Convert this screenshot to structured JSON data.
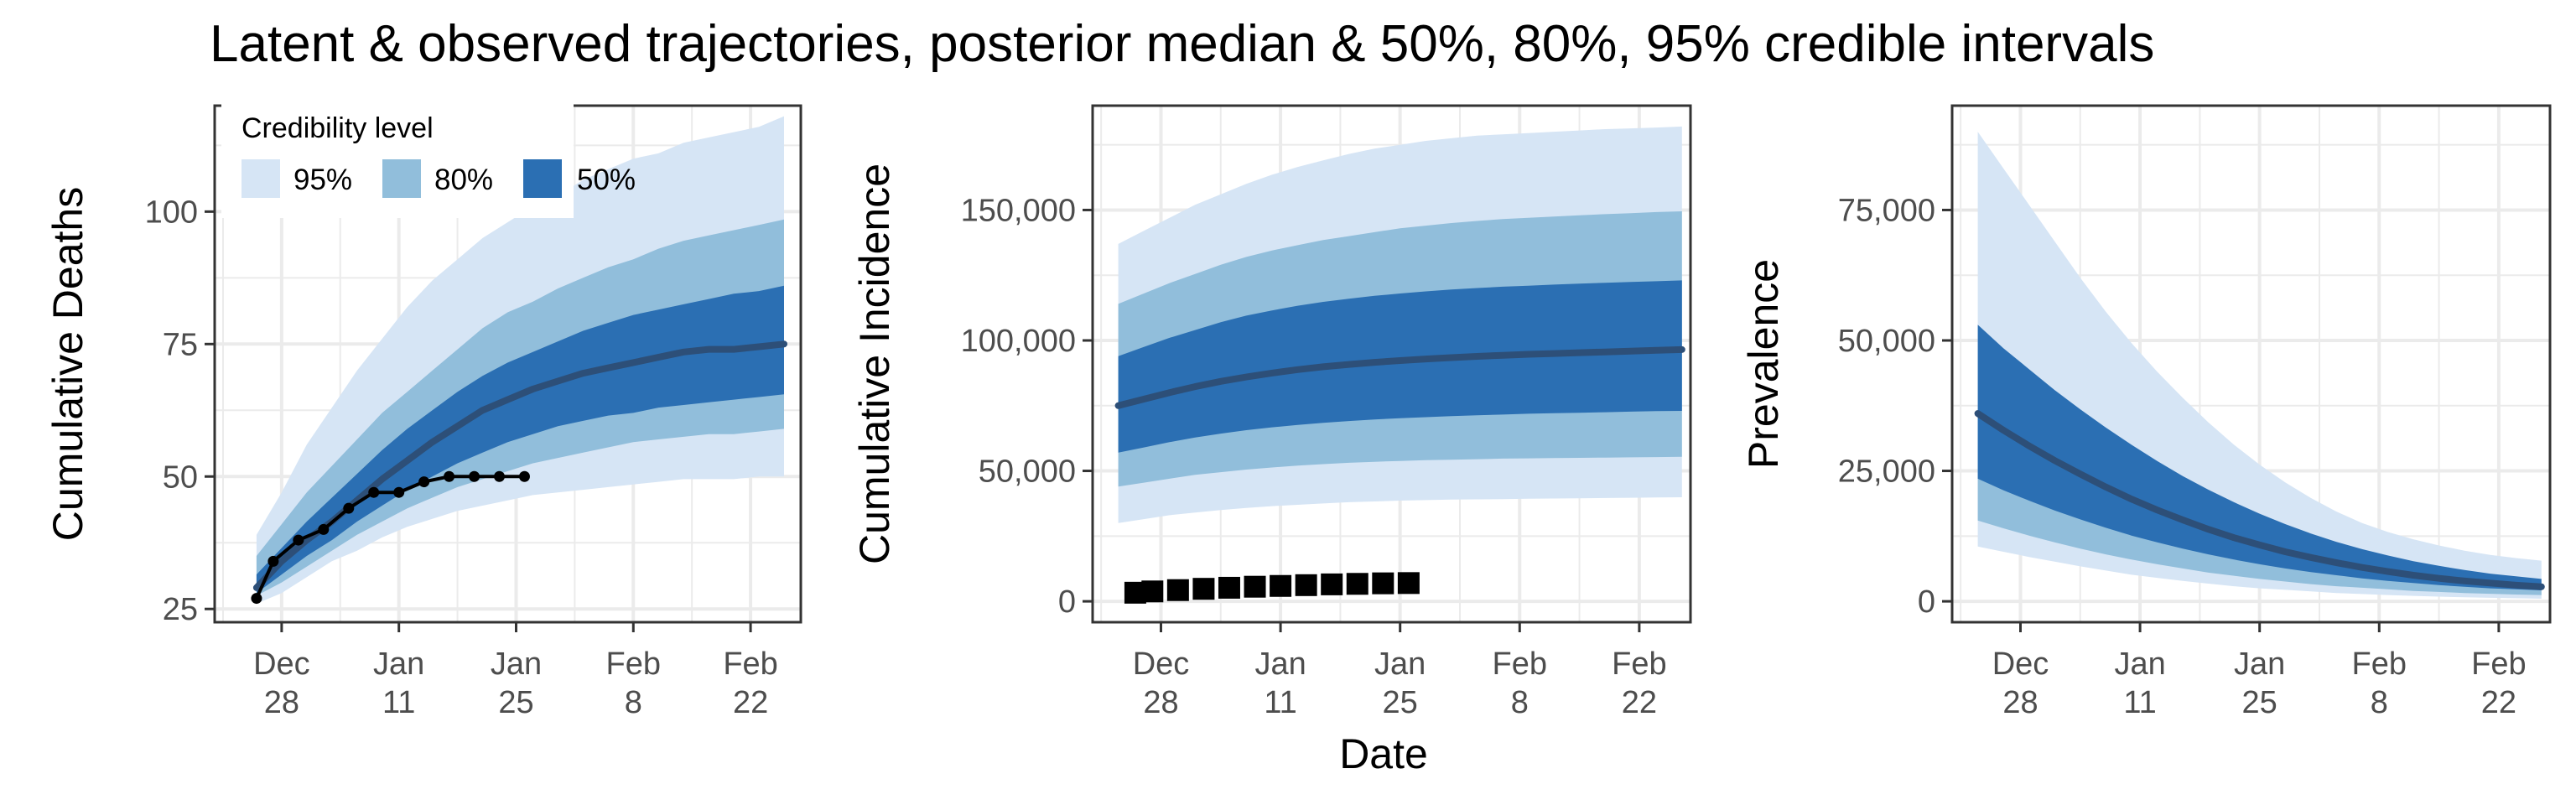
{
  "title": "Latent & observed trajectories, posterior median & 50%, 80%, 95% credible intervals",
  "xlabel": "Date",
  "legend": {
    "title": "Credibility level",
    "position": "top-left",
    "items": [
      {
        "label": "95%",
        "color": "#d6e5f5"
      },
      {
        "label": "80%",
        "color": "#91bedb"
      },
      {
        "label": "50%",
        "color": "#2b6fb3"
      }
    ]
  },
  "colors": {
    "median": "#2d4f78",
    "observed": "#000000",
    "panel_border": "#333333",
    "grid": "#ebebeb"
  },
  "chart_data": [
    {
      "type": "area",
      "ylabel": "Cumulative Deaths",
      "xlim": [
        "2020-12-20",
        "2021-02-28"
      ],
      "ylim": [
        22.5,
        120
      ],
      "y_ticks": [
        25,
        50,
        75,
        100
      ],
      "y_tick_labels": [
        "25",
        "50",
        "75",
        "100"
      ],
      "x_ticks": [
        "2020-12-28",
        "2021-01-11",
        "2021-01-25",
        "2021-02-08",
        "2021-02-22"
      ],
      "x_tick_labels": [
        [
          "Dec",
          "28"
        ],
        [
          "Jan",
          "11"
        ],
        [
          "Jan",
          "25"
        ],
        [
          "Feb",
          "8"
        ],
        [
          "Feb",
          "22"
        ]
      ],
      "grid": true,
      "x": [
        "2020-12-25",
        "2020-12-28",
        "2020-12-31",
        "2021-01-03",
        "2021-01-06",
        "2021-01-09",
        "2021-01-12",
        "2021-01-15",
        "2021-01-18",
        "2021-01-21",
        "2021-01-24",
        "2021-01-27",
        "2021-01-30",
        "2021-02-02",
        "2021-02-05",
        "2021-02-08",
        "2021-02-11",
        "2021-02-14",
        "2021-02-17",
        "2021-02-20",
        "2021-02-23",
        "2021-02-26"
      ],
      "bands": {
        "95": {
          "lower": [
            26,
            28,
            31,
            34,
            36,
            38.5,
            40.5,
            42,
            43.5,
            44.5,
            45.5,
            46.5,
            47,
            47.5,
            48,
            48.5,
            49,
            49.5,
            49.5,
            49.5,
            50,
            50
          ],
          "upper": [
            39,
            47,
            56,
            63,
            70,
            76,
            82,
            87,
            91,
            95,
            98,
            101,
            103,
            106,
            108,
            110,
            111,
            113,
            114,
            115,
            116,
            118
          ]
        },
        "80": {
          "lower": [
            27.5,
            30,
            33,
            36,
            39,
            41.5,
            44,
            46,
            48,
            49.5,
            51,
            52.5,
            53.5,
            54.5,
            55.5,
            56.5,
            57,
            57.5,
            58,
            58,
            58.5,
            59
          ],
          "upper": [
            35,
            41,
            47,
            52,
            57,
            62,
            66,
            70,
            74,
            78,
            81,
            83,
            85.5,
            87.5,
            89.5,
            91,
            93,
            94.5,
            95.5,
            96.5,
            97.5,
            98.5
          ]
        },
        "50": {
          "lower": [
            28,
            31.5,
            35,
            38,
            41.5,
            44.5,
            47.5,
            50,
            52.5,
            54.5,
            56.5,
            58,
            59.5,
            60.5,
            61.5,
            62,
            63,
            63.5,
            64,
            64.5,
            65,
            65.5
          ],
          "upper": [
            31.5,
            36.5,
            41.5,
            46,
            50.5,
            55,
            59,
            62.5,
            66,
            69,
            71.5,
            73.5,
            75.5,
            77.5,
            79,
            80.5,
            81.5,
            82.5,
            83.5,
            84.5,
            85,
            86
          ]
        }
      },
      "median": [
        29,
        34,
        38,
        41.5,
        45.5,
        49.5,
        53,
        56.5,
        59.5,
        62.5,
        64.5,
        66.5,
        68,
        69.5,
        70.5,
        71.5,
        72.5,
        73.5,
        74,
        74,
        74.5,
        75
      ],
      "observed": {
        "style": "line+points",
        "x": [
          "2020-12-25",
          "2020-12-27",
          "2020-12-30",
          "2021-01-02",
          "2021-01-05",
          "2021-01-08",
          "2021-01-11",
          "2021-01-14",
          "2021-01-17",
          "2021-01-20",
          "2021-01-23",
          "2021-01-26"
        ],
        "y": [
          27,
          34,
          38,
          40,
          44,
          47,
          47,
          49,
          50,
          50,
          50,
          50
        ]
      }
    },
    {
      "type": "area",
      "ylabel": "Cumulative Incidence",
      "xlim": [
        "2020-12-20",
        "2021-02-28"
      ],
      "ylim": [
        -8000,
        190000
      ],
      "y_ticks": [
        0,
        50000,
        100000,
        150000
      ],
      "y_tick_labels": [
        "0",
        "50,000",
        "100,000",
        "150,000"
      ],
      "x_ticks": [
        "2020-12-28",
        "2021-01-11",
        "2021-01-25",
        "2021-02-08",
        "2021-02-22"
      ],
      "x_tick_labels": [
        [
          "Dec",
          "28"
        ],
        [
          "Jan",
          "11"
        ],
        [
          "Jan",
          "25"
        ],
        [
          "Feb",
          "8"
        ],
        [
          "Feb",
          "22"
        ]
      ],
      "grid": true,
      "x": [
        "2020-12-23",
        "2020-12-26",
        "2020-12-29",
        "2021-01-01",
        "2021-01-04",
        "2021-01-07",
        "2021-01-10",
        "2021-01-13",
        "2021-01-16",
        "2021-01-19",
        "2021-01-22",
        "2021-01-25",
        "2021-01-28",
        "2021-01-31",
        "2021-02-03",
        "2021-02-06",
        "2021-02-09",
        "2021-02-12",
        "2021-02-15",
        "2021-02-18",
        "2021-02-21",
        "2021-02-24",
        "2021-02-27"
      ],
      "bands": {
        "95": {
          "lower": [
            30000,
            31500,
            33000,
            34000,
            35000,
            35800,
            36500,
            37000,
            37500,
            38000,
            38300,
            38600,
            38800,
            39000,
            39100,
            39200,
            39300,
            39400,
            39500,
            39600,
            39700,
            39800,
            39900
          ],
          "upper": [
            137000,
            142000,
            147000,
            152000,
            156000,
            160000,
            163500,
            166500,
            169000,
            171500,
            173500,
            175000,
            176500,
            177500,
            178500,
            179000,
            179500,
            180000,
            180500,
            181000,
            181300,
            181600,
            182000
          ]
        },
        "80": {
          "lower": [
            44000,
            45500,
            47000,
            48500,
            49500,
            50500,
            51300,
            52000,
            52600,
            53100,
            53500,
            53800,
            54100,
            54300,
            54500,
            54700,
            54800,
            54900,
            55000,
            55100,
            55200,
            55300,
            55400
          ],
          "upper": [
            114000,
            118000,
            122000,
            125500,
            129000,
            132000,
            134500,
            136500,
            138500,
            140000,
            141500,
            143000,
            144000,
            145000,
            145800,
            146500,
            147000,
            147500,
            148000,
            148400,
            148800,
            149200,
            149500
          ]
        },
        "50": {
          "lower": [
            57000,
            59000,
            61000,
            62800,
            64300,
            65600,
            66700,
            67600,
            68400,
            69100,
            69700,
            70200,
            70600,
            71000,
            71300,
            71600,
            71900,
            72100,
            72300,
            72500,
            72700,
            72900,
            73000
          ],
          "upper": [
            94000,
            97500,
            101000,
            104000,
            107000,
            109500,
            111500,
            113300,
            114800,
            116000,
            117100,
            118000,
            118800,
            119500,
            120100,
            120600,
            121000,
            121400,
            121800,
            122100,
            122400,
            122700,
            123000
          ]
        }
      },
      "median": [
        75000,
        77500,
        80000,
        82300,
        84300,
        86000,
        87500,
        88800,
        89900,
        90800,
        91600,
        92300,
        92900,
        93400,
        93900,
        94300,
        94700,
        95000,
        95300,
        95600,
        95900,
        96200,
        96500
      ],
      "observed": {
        "style": "squares",
        "x": [
          "2020-12-25",
          "2020-12-27",
          "2020-12-30",
          "2021-01-02",
          "2021-01-05",
          "2021-01-08",
          "2021-01-11",
          "2021-01-14",
          "2021-01-17",
          "2021-01-20",
          "2021-01-23",
          "2021-01-26"
        ],
        "y": [
          3300,
          3800,
          4300,
          4800,
          5200,
          5600,
          5900,
          6200,
          6500,
          6700,
          6900,
          7000
        ]
      }
    },
    {
      "type": "area",
      "ylabel": "Prevalence",
      "xlim": [
        "2020-12-20",
        "2021-02-28"
      ],
      "ylim": [
        -4000,
        95000
      ],
      "y_ticks": [
        0,
        25000,
        50000,
        75000
      ],
      "y_tick_labels": [
        "0",
        "25,000",
        "50,000",
        "75,000"
      ],
      "x_ticks": [
        "2020-12-28",
        "2021-01-11",
        "2021-01-25",
        "2021-02-08",
        "2021-02-22"
      ],
      "x_tick_labels": [
        [
          "Dec",
          "28"
        ],
        [
          "Jan",
          "11"
        ],
        [
          "Jan",
          "25"
        ],
        [
          "Feb",
          "8"
        ],
        [
          "Feb",
          "22"
        ]
      ],
      "grid": true,
      "x": [
        "2020-12-23",
        "2020-12-26",
        "2020-12-29",
        "2021-01-01",
        "2021-01-04",
        "2021-01-07",
        "2021-01-10",
        "2021-01-13",
        "2021-01-16",
        "2021-01-19",
        "2021-01-22",
        "2021-01-25",
        "2021-01-28",
        "2021-01-31",
        "2021-02-03",
        "2021-02-06",
        "2021-02-09",
        "2021-02-12",
        "2021-02-15",
        "2021-02-18",
        "2021-02-21",
        "2021-02-24",
        "2021-02-27"
      ],
      "bands": {
        "95": {
          "lower": [
            10500,
            9500,
            8500,
            7600,
            6700,
            5900,
            5100,
            4500,
            3900,
            3400,
            2900,
            2500,
            2200,
            1900,
            1600,
            1400,
            1200,
            1050,
            900,
            780,
            680,
            590,
            500
          ],
          "upper": [
            90000,
            83000,
            76000,
            69000,
            62000,
            55500,
            49500,
            44000,
            39000,
            34300,
            30000,
            26200,
            22800,
            19800,
            17200,
            15000,
            13300,
            11900,
            10700,
            9700,
            8900,
            8300,
            7800
          ]
        },
        "80": {
          "lower": [
            15500,
            14000,
            12600,
            11300,
            10100,
            9000,
            8000,
            7100,
            6300,
            5500,
            4900,
            4300,
            3800,
            3300,
            2900,
            2600,
            2300,
            2000,
            1800,
            1600,
            1450,
            1300,
            1200
          ]
        },
        "50": {
          "lower": [
            23500,
            21300,
            19300,
            17400,
            15700,
            14100,
            12600,
            11300,
            10100,
            9000,
            8000,
            7100,
            6300,
            5600,
            5000,
            4400,
            3900,
            3500,
            3100,
            2800,
            2500,
            2300,
            2100
          ],
          "upper": [
            53000,
            48500,
            44500,
            40500,
            36800,
            33300,
            30000,
            26900,
            24000,
            21400,
            19000,
            16800,
            14800,
            13000,
            11400,
            10000,
            8800,
            7700,
            6800,
            6000,
            5300,
            4800,
            4300
          ]
        }
      },
      "median": [
        36000,
        32800,
        29800,
        27000,
        24400,
        21900,
        19600,
        17500,
        15600,
        13800,
        12200,
        10800,
        9500,
        8400,
        7400,
        6500,
        5700,
        5000,
        4400,
        3900,
        3500,
        3100,
        2800
      ]
    }
  ]
}
